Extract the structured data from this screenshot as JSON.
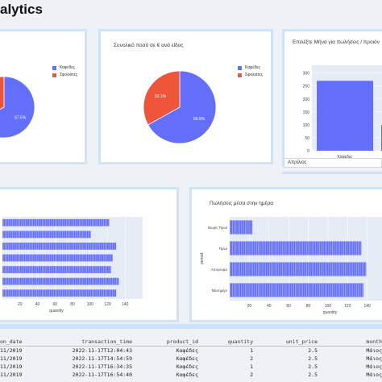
{
  "page": {
    "title": "alytics"
  },
  "colors": {
    "coffee": "#636efa",
    "milkshake": "#ef553b",
    "panel_border": "#cfe3f7"
  },
  "panel1": {
    "legend": [
      "Καφέδες",
      "Σφολιάτες"
    ]
  },
  "panel2": {
    "title": "Συνολικό ποσό σε € ανά είδος",
    "legend": [
      "Καφέδες",
      "Σφολιάτες"
    ]
  },
  "panel3": {
    "title": "Επιλέξτε Μήνα για πωλήσεις / προιόν",
    "select_value": "Απρίλιος",
    "y_ticks": [
      "300",
      "250",
      "200",
      "150",
      "100",
      "50",
      "0"
    ],
    "x_ticks": [
      "Καφέδες"
    ]
  },
  "panel4": {
    "x_ticks": [
      "20",
      "40",
      "60",
      "80",
      "100",
      "120",
      "140"
    ],
    "x_label": "quantity"
  },
  "panel5": {
    "title": "Πωλήσεις μέσα στην ημέρα",
    "y_label": "period",
    "y_ticks": [
      "Νωρίς Πρωί",
      "Πρωί",
      "Απόγευμα",
      "Μεσημέρι"
    ],
    "x_ticks": [
      "20",
      "40",
      "60",
      "80",
      "100",
      "120",
      "140"
    ],
    "x_label": "quantity"
  },
  "chart_data": [
    {
      "type": "pie",
      "labels": [
        "Καφέδες",
        "Σφολιάτες"
      ],
      "values": [
        67.5,
        32.5
      ]
    },
    {
      "type": "pie",
      "title": "Συνολικό ποσό σε € ανά είδος",
      "labels": [
        "Καφέδες",
        "Σφολιάτες"
      ],
      "values": [
        66.9,
        33.1
      ]
    },
    {
      "type": "bar",
      "title": "Επιλέξτε Μήνα για πωλήσεις / προιόν",
      "categories": [
        "Καφέδες",
        ""
      ],
      "values": [
        270,
        100
      ],
      "ylim": [
        0,
        330
      ]
    },
    {
      "type": "bar",
      "orientation": "horizontal",
      "xlabel": "quantity",
      "values": [
        122,
        101,
        130,
        126,
        124,
        133,
        130
      ],
      "xlim": [
        0,
        160
      ]
    },
    {
      "type": "bar",
      "orientation": "horizontal",
      "title": "Πωλήσεις μέσα στην ημέρα",
      "xlabel": "quantity",
      "ylabel": "period",
      "categories": [
        "Νωρίς Πρωί",
        "Πρωί",
        "Απόγευμα",
        "Μεσημέρι"
      ],
      "values": [
        23,
        134,
        139,
        136
      ],
      "xlim": [
        0,
        155
      ]
    }
  ],
  "table": {
    "headers": [
      "on_date",
      "transaction_time",
      "product_id",
      "quantity",
      "unit_price",
      "month"
    ],
    "rows": [
      [
        "11/2019",
        "2022-11-17T12:04:43",
        "Καφέδες",
        "1",
        "2.5",
        "Μάιος"
      ],
      [
        "11/2019",
        "2022-11-17T14:54:59",
        "Καφέδες",
        "2",
        "2.5",
        "Μάιος"
      ],
      [
        "11/2019",
        "2022-11-17T16:34:35",
        "Καφέδες",
        "1",
        "2.5",
        "Μάιος"
      ],
      [
        "11/2019",
        "2022-11-17T16:54:40",
        "Καφέδες",
        "2",
        "2.5",
        "Μάιος"
      ]
    ]
  }
}
